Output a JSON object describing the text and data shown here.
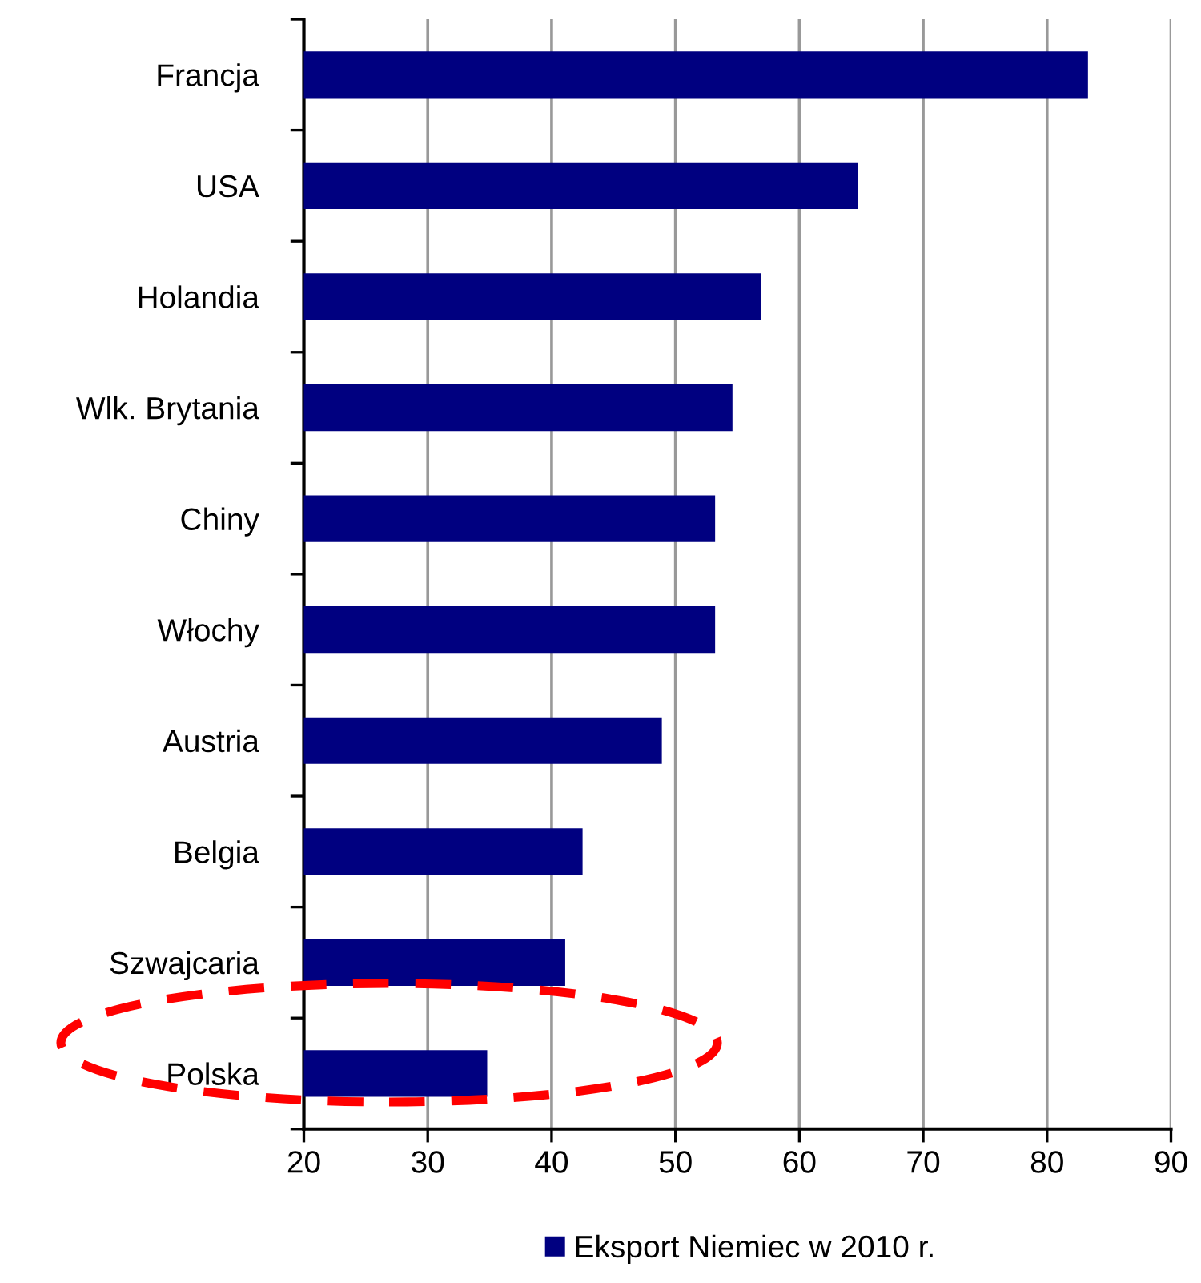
{
  "chart_data": {
    "type": "bar",
    "orientation": "horizontal",
    "categories": [
      "Francja",
      "USA",
      "Holandia",
      "Wlk. Brytania",
      "Chiny",
      "Włochy",
      "Austria",
      "Belgia",
      "Szwajcaria",
      "Polska"
    ],
    "series": [
      {
        "name": "Eksport Niemiec w 2010 r.",
        "color": "#000080",
        "values": [
          83.3,
          64.7,
          56.9,
          54.6,
          53.2,
          53.2,
          48.9,
          42.5,
          41.1,
          34.8
        ]
      }
    ],
    "xlim": [
      20,
      90
    ],
    "xticks": [
      20,
      30,
      40,
      50,
      60,
      70,
      80,
      90
    ],
    "grid": "x",
    "legend": "bottom"
  }
}
